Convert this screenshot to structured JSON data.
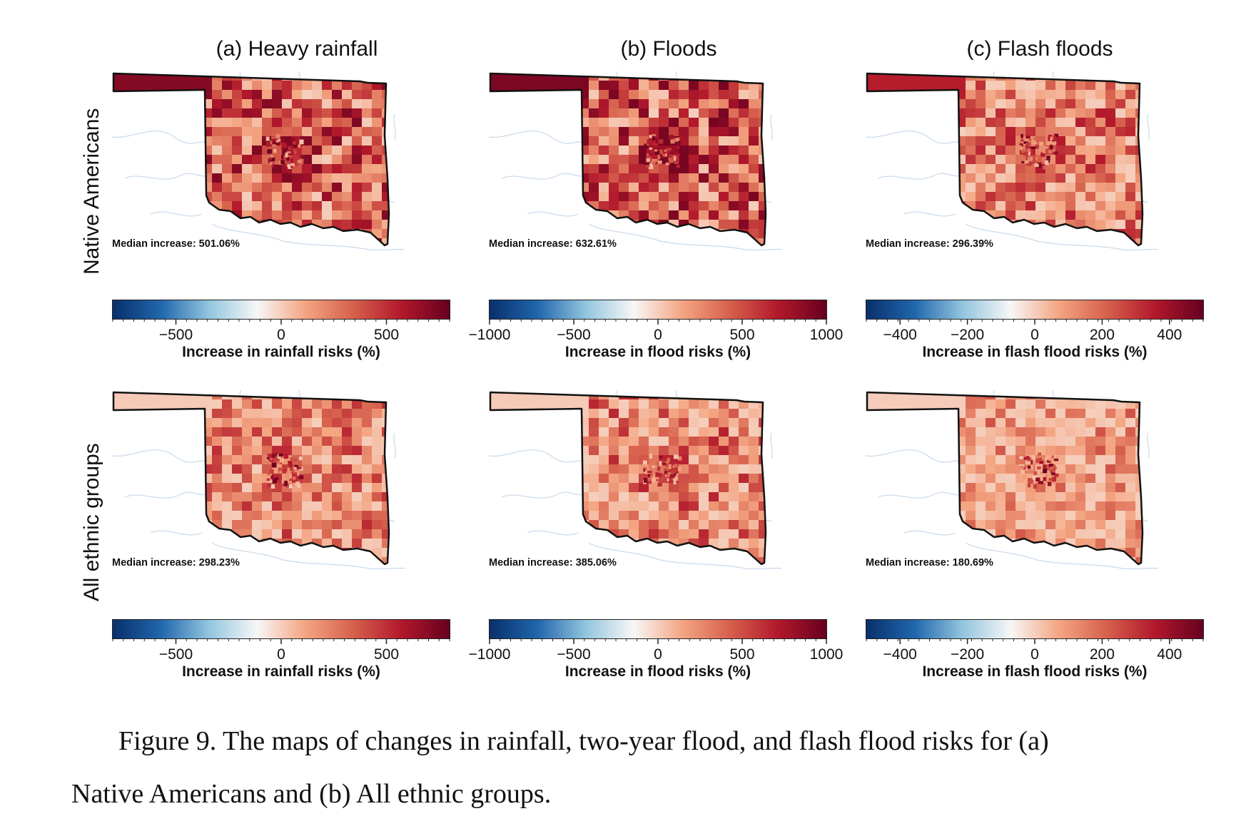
{
  "column_titles": [
    "(a) Heavy rainfall",
    "(b) Floods",
    "(c) Flash floods"
  ],
  "row_labels": [
    "Native Americans",
    "All ethnic groups"
  ],
  "panels": [
    {
      "row": 0,
      "col": 0,
      "median_text": "Median increase: 501.06%",
      "intensity": 0.85
    },
    {
      "row": 0,
      "col": 1,
      "median_text": "Median increase: 632.61%",
      "intensity": 0.9
    },
    {
      "row": 0,
      "col": 2,
      "median_text": "Median increase: 296.39%",
      "intensity": 0.55
    },
    {
      "row": 1,
      "col": 0,
      "median_text": "Median increase: 298.23%",
      "intensity": 0.45
    },
    {
      "row": 1,
      "col": 1,
      "median_text": "Median increase: 385.06%",
      "intensity": 0.5
    },
    {
      "row": 1,
      "col": 2,
      "median_text": "Median increase: 180.69%",
      "intensity": 0.2
    }
  ],
  "colorbars": [
    {
      "label": "Increase in rainfall risks (%)",
      "min": -800,
      "max": 800,
      "ticks": [
        -500,
        0,
        500
      ],
      "tick_labels": [
        "−500",
        "0",
        "500"
      ]
    },
    {
      "label": "Increase in flood risks (%)",
      "min": -1000,
      "max": 1000,
      "ticks": [
        -1000,
        -500,
        0,
        500,
        1000
      ],
      "tick_labels": [
        "−1000",
        "−500",
        "0",
        "500",
        "1000"
      ]
    },
    {
      "label": "Increase in flash flood risks (%)",
      "min": -500,
      "max": 500,
      "ticks": [
        -400,
        -200,
        0,
        200,
        400
      ],
      "tick_labels": [
        "−400",
        "−200",
        "0",
        "200",
        "400"
      ]
    }
  ],
  "colormap": [
    "#08306b",
    "#2166ac",
    "#92c5de",
    "#f7f7f7",
    "#f4a582",
    "#d6604d",
    "#b2182b",
    "#67001f"
  ],
  "caption_line1": "Figure 9. The maps of changes in rainfall, two-year flood, and flash flood risks for (a)",
  "caption_line2": "Native Americans and (b) All ethnic groups."
}
